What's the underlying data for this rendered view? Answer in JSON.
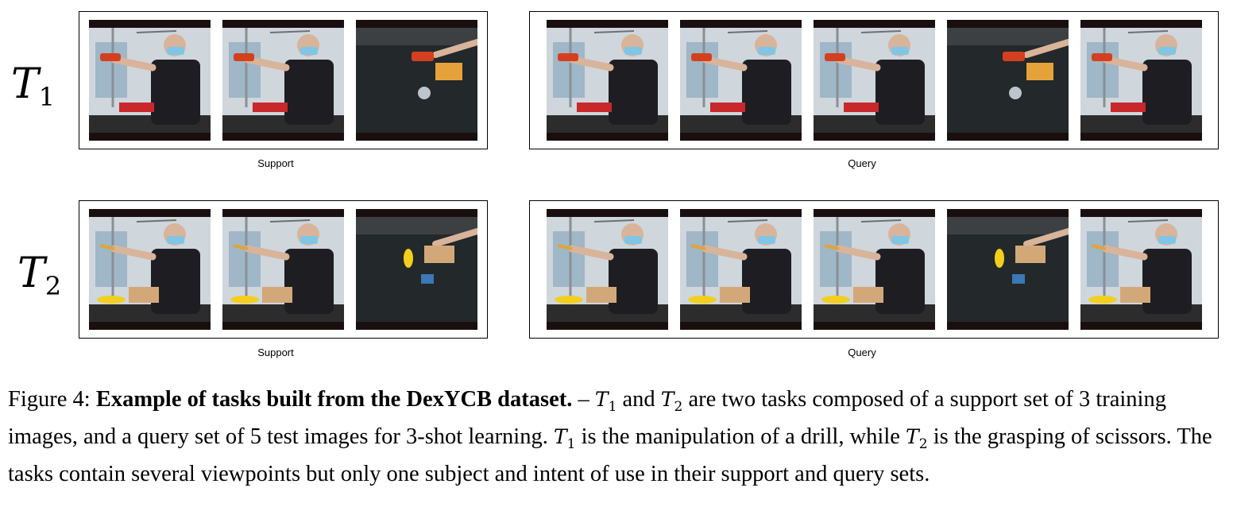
{
  "rows": [
    {
      "task_label": "T",
      "task_index": "1",
      "support_caption": "Support",
      "query_caption": "Query",
      "support_frames": [
        {
          "icon": "person-with-drill",
          "scene": "lab"
        },
        {
          "icon": "person-with-drill",
          "scene": "lab"
        },
        {
          "icon": "hand-with-drill",
          "scene": "table"
        }
      ],
      "query_frames": [
        {
          "icon": "person-with-drill",
          "scene": "lab"
        },
        {
          "icon": "person-with-drill",
          "scene": "lab"
        },
        {
          "icon": "person-with-drill",
          "scene": "lab"
        },
        {
          "icon": "hand-with-drill",
          "scene": "table"
        },
        {
          "icon": "person-with-drill",
          "scene": "lab"
        }
      ]
    },
    {
      "task_label": "T",
      "task_index": "2",
      "support_caption": "Support",
      "query_caption": "Query",
      "support_frames": [
        {
          "icon": "person-with-scissors",
          "scene": "lab"
        },
        {
          "icon": "person-with-scissors",
          "scene": "lab"
        },
        {
          "icon": "hand-with-scissors",
          "scene": "table"
        }
      ],
      "query_frames": [
        {
          "icon": "person-with-scissors",
          "scene": "lab"
        },
        {
          "icon": "person-with-scissors",
          "scene": "lab"
        },
        {
          "icon": "person-with-scissors",
          "scene": "lab"
        },
        {
          "icon": "hand-with-scissors",
          "scene": "table"
        },
        {
          "icon": "person-with-scissors",
          "scene": "lab"
        }
      ]
    }
  ],
  "caption": {
    "prefix": "Figure 4: ",
    "bold": "Example of tasks built from the DexYCB dataset.",
    "t1": "T",
    "t1_sub": "1",
    "and": " and ",
    "t2": "T",
    "t2_sub": "2",
    "part1": " are two tasks composed of a support set of 3 training images, and a query set of 5 test images for 3-shot learning. ",
    "part2": " is the manipulation of a drill, while ",
    "part3": " is the grasping of scissors. The tasks contain several viewpoints but only one subject and intent of use in their support and query sets."
  },
  "colors": {
    "frame_bar": "#1a0f0f",
    "wall": "#cfd6dc",
    "table": "#2c2c2c",
    "shirt": "#1e1e22",
    "skin": "#d8b49a",
    "mask": "#7fc6e6",
    "drill": "#d4401f",
    "box_red": "#c8272b",
    "box_tan": "#d3a879",
    "banana": "#f2cf1d"
  }
}
